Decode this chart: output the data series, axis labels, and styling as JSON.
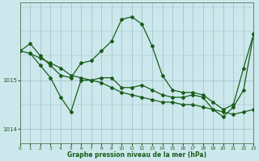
{
  "title": "Graphe pression niveau de la mer (hPa)",
  "bg_color": "#cce8ec",
  "grid_color": "#9bbfc4",
  "line_color": "#1a5c1a",
  "xlim": [
    0,
    23
  ],
  "ylim": [
    1013.7,
    1016.6
  ],
  "yticks": [
    1014,
    1015
  ],
  "xticks": [
    0,
    1,
    2,
    3,
    4,
    5,
    6,
    7,
    8,
    9,
    10,
    11,
    12,
    13,
    14,
    15,
    16,
    17,
    18,
    19,
    20,
    21,
    22,
    23
  ],
  "series": [
    {
      "x": [
        0,
        1,
        2,
        3,
        4,
        5,
        6,
        7,
        8,
        9,
        10,
        11,
        12,
        13,
        14,
        15,
        16,
        17,
        18,
        19,
        20,
        21,
        22,
        23
      ],
      "y": [
        1015.6,
        1015.75,
        1015.5,
        1015.3,
        1015.1,
        1015.05,
        1015.35,
        1015.4,
        1015.6,
        1015.8,
        1016.25,
        1016.3,
        1016.15,
        1015.7,
        1015.1,
        1014.8,
        1014.75,
        1014.75,
        1014.7,
        1014.55,
        1014.4,
        1014.5,
        1015.25,
        1015.95
      ]
    },
    {
      "x": [
        0,
        1,
        2,
        3,
        4,
        5,
        6,
        7,
        8,
        9,
        10,
        11,
        12,
        13,
        14,
        15,
        16,
        17,
        18,
        19,
        20,
        21,
        22,
        23
      ],
      "y": [
        1015.6,
        1015.55,
        1015.45,
        1015.35,
        1015.25,
        1015.1,
        1015.05,
        1015.0,
        1014.95,
        1014.85,
        1014.75,
        1014.7,
        1014.65,
        1014.6,
        1014.55,
        1014.55,
        1014.5,
        1014.5,
        1014.45,
        1014.4,
        1014.35,
        1014.3,
        1014.35,
        1014.4
      ]
    },
    {
      "x": [
        1,
        2,
        3,
        4,
        5,
        6,
        7,
        8,
        9,
        10,
        11,
        12,
        13,
        14,
        15,
        16,
        17,
        18,
        19,
        20,
        21,
        22,
        23
      ],
      "y": [
        1015.55,
        1015.3,
        1015.05,
        1014.65,
        1014.35,
        1015.0,
        1015.0,
        1015.05,
        1015.05,
        1014.85,
        1014.85,
        1014.9,
        1014.8,
        1014.7,
        1014.65,
        1014.65,
        1014.7,
        1014.65,
        1014.4,
        1014.25,
        1014.45,
        1014.8,
        1015.95
      ]
    }
  ]
}
